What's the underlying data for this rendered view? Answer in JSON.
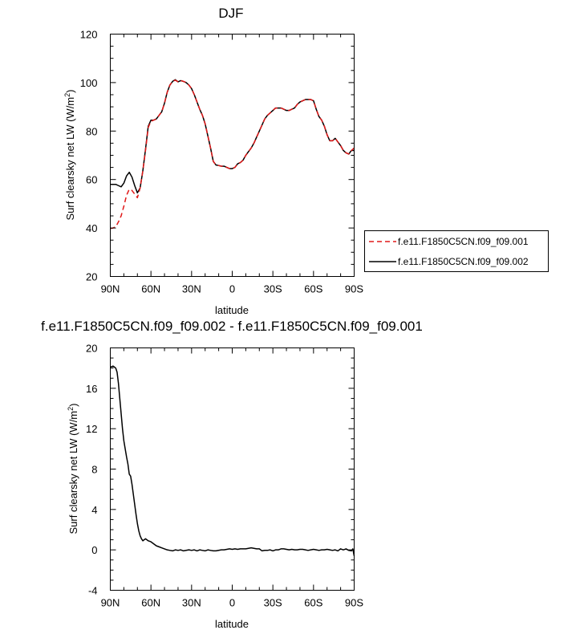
{
  "chart_data": [
    {
      "type": "line",
      "title": "DJF",
      "xlabel": "latitude",
      "ylabel": "Surf clearsky net LW (W/m",
      "ylabel_sup": "2",
      "ylabel_close": ")",
      "xlim": [
        90,
        -90
      ],
      "ylim": [
        20,
        120
      ],
      "xticks": [
        90,
        60,
        30,
        0,
        -30,
        -60,
        -90
      ],
      "xtick_labels": [
        "90N",
        "60N",
        "30N",
        "0",
        "30S",
        "60S",
        "90S"
      ],
      "yticks": [
        20,
        40,
        60,
        80,
        100,
        120
      ],
      "ytick_labels": [
        "20",
        "40",
        "60",
        "80",
        "100",
        "120"
      ],
      "legend_placement": "right",
      "series": [
        {
          "name": "f.e11.F1850C5CN.f09_f09.001",
          "color": "#e01818",
          "dash": "dashed",
          "x": [
            90,
            88,
            86,
            84,
            82,
            80,
            78,
            76,
            74,
            72,
            70,
            68,
            66,
            64,
            62,
            60,
            58,
            56,
            54,
            52,
            50,
            48,
            46,
            44,
            42,
            40,
            38,
            36,
            34,
            32,
            30,
            28,
            26,
            24,
            22,
            20,
            18,
            16,
            14,
            12,
            10,
            8,
            6,
            4,
            2,
            0,
            -2,
            -4,
            -6,
            -8,
            -10,
            -12,
            -14,
            -16,
            -18,
            -20,
            -22,
            -24,
            -26,
            -28,
            -30,
            -32,
            -34,
            -36,
            -38,
            -40,
            -42,
            -44,
            -46,
            -48,
            -50,
            -52,
            -54,
            -56,
            -58,
            -60,
            -62,
            -64,
            -66,
            -68,
            -70,
            -72,
            -74,
            -76,
            -78,
            -80,
            -82,
            -84,
            -86,
            -88,
            -90
          ],
          "y": [
            39.8,
            40.0,
            40.5,
            42.5,
            45.0,
            49.0,
            53.5,
            56.0,
            55.5,
            54.0,
            52.5,
            56.5,
            63.5,
            72.0,
            81.5,
            84.0,
            84.5,
            85.0,
            86.5,
            88.0,
            91.5,
            96.0,
            99.0,
            100.5,
            101.0,
            100.3,
            100.8,
            100.5,
            100.0,
            99.0,
            97.5,
            95.0,
            92.0,
            89.0,
            86.5,
            83.0,
            78.0,
            73.0,
            67.5,
            66.0,
            65.8,
            65.5,
            65.5,
            65.0,
            64.5,
            64.5,
            65.0,
            66.5,
            67.0,
            68.0,
            70.0,
            71.5,
            73.0,
            75.0,
            77.5,
            80.0,
            82.5,
            85.0,
            86.5,
            87.5,
            88.5,
            89.5,
            89.5,
            89.5,
            89.0,
            88.5,
            88.5,
            89.0,
            89.5,
            91.0,
            92.0,
            92.5,
            93.0,
            93.0,
            93.0,
            92.5,
            89.0,
            86.0,
            84.5,
            82.0,
            78.5,
            76.0,
            76.0,
            77.0,
            75.5,
            74.0,
            72.0,
            71.0,
            70.5,
            72.0,
            73.0
          ]
        },
        {
          "name": "f.e11.F1850C5CN.f09_f09.002",
          "color": "#000000",
          "dash": "solid",
          "x": [
            90,
            88,
            86,
            84,
            82,
            80,
            78,
            76,
            74,
            72,
            70,
            68,
            66,
            64,
            62,
            60,
            58,
            56,
            54,
            52,
            50,
            48,
            46,
            44,
            42,
            40,
            38,
            36,
            34,
            32,
            30,
            28,
            26,
            24,
            22,
            20,
            18,
            16,
            14,
            12,
            10,
            8,
            6,
            4,
            2,
            0,
            -2,
            -4,
            -6,
            -8,
            -10,
            -12,
            -14,
            -16,
            -18,
            -20,
            -22,
            -24,
            -26,
            -28,
            -30,
            -32,
            -34,
            -36,
            -38,
            -40,
            -42,
            -44,
            -46,
            -48,
            -50,
            -52,
            -54,
            -56,
            -58,
            -60,
            -62,
            -64,
            -66,
            -68,
            -70,
            -72,
            -74,
            -76,
            -78,
            -80,
            -82,
            -84,
            -86,
            -88,
            -90
          ],
          "y": [
            58.0,
            58.0,
            58.0,
            57.5,
            57.0,
            58.5,
            61.5,
            63.0,
            61.0,
            57.5,
            54.5,
            56.5,
            63.5,
            72.5,
            82.0,
            84.5,
            84.5,
            85.0,
            86.5,
            88.0,
            91.5,
            96.0,
            99.0,
            100.5,
            101.2,
            100.3,
            100.8,
            100.5,
            100.0,
            99.0,
            97.5,
            95.0,
            92.0,
            89.0,
            86.5,
            83.0,
            78.0,
            73.0,
            67.5,
            66.0,
            65.8,
            65.5,
            65.5,
            65.0,
            64.5,
            64.5,
            65.0,
            66.5,
            67.0,
            68.0,
            70.0,
            71.5,
            73.0,
            75.0,
            77.5,
            80.0,
            82.5,
            85.0,
            86.5,
            87.5,
            88.5,
            89.5,
            89.5,
            89.5,
            89.0,
            88.5,
            88.5,
            89.0,
            89.5,
            91.0,
            92.0,
            92.5,
            93.0,
            93.0,
            93.0,
            92.5,
            89.0,
            86.0,
            84.5,
            82.0,
            78.5,
            76.0,
            76.0,
            77.0,
            75.5,
            74.0,
            72.0,
            71.0,
            70.5,
            72.0,
            72.0
          ]
        }
      ]
    },
    {
      "type": "line",
      "title": "f.e11.F1850C5CN.f09_f09.002 - f.e11.F1850C5CN.f09_f09.001",
      "xlabel": "latitude",
      "ylabel": "Surf clearsky net LW (W/m",
      "ylabel_sup": "2",
      "ylabel_close": ")",
      "xlim": [
        90,
        -90
      ],
      "ylim": [
        -4,
        20
      ],
      "xticks": [
        90,
        60,
        30,
        0,
        -30,
        -60,
        -90
      ],
      "xtick_labels": [
        "90N",
        "60N",
        "30N",
        "0",
        "30S",
        "60S",
        "90S"
      ],
      "yticks": [
        -4,
        0,
        4,
        8,
        12,
        16,
        20
      ],
      "ytick_labels": [
        "-4",
        "0",
        "4",
        "8",
        "12",
        "16",
        "20"
      ],
      "series": [
        {
          "color": "#000000",
          "dash": "solid",
          "x": [
            90,
            88,
            87,
            86,
            85,
            84,
            83,
            82,
            81,
            80,
            79,
            78,
            77,
            76,
            75,
            74,
            73,
            72,
            71,
            70,
            69,
            68,
            67,
            66,
            64,
            62,
            60,
            58,
            56,
            54,
            52,
            50,
            48,
            46,
            44,
            42,
            40,
            38,
            36,
            34,
            32,
            30,
            28,
            26,
            24,
            22,
            20,
            18,
            16,
            14,
            12,
            10,
            8,
            6,
            4,
            2,
            0,
            -2,
            -4,
            -6,
            -8,
            -10,
            -12,
            -14,
            -16,
            -18,
            -20,
            -22,
            -24,
            -26,
            -28,
            -30,
            -32,
            -34,
            -36,
            -38,
            -40,
            -42,
            -44,
            -46,
            -48,
            -50,
            -52,
            -54,
            -56,
            -58,
            -60,
            -62,
            -64,
            -66,
            -68,
            -70,
            -72,
            -74,
            -76,
            -78,
            -80,
            -82,
            -84,
            -86,
            -88,
            -89,
            -90
          ],
          "y": [
            18.1,
            18.2,
            18.1,
            18.0,
            17.6,
            16.5,
            15.0,
            13.5,
            12.0,
            10.8,
            10.0,
            9.2,
            8.5,
            7.5,
            7.3,
            6.5,
            5.5,
            4.5,
            3.5,
            2.6,
            1.9,
            1.4,
            1.1,
            0.9,
            1.1,
            0.9,
            0.8,
            0.6,
            0.4,
            0.3,
            0.2,
            0.1,
            0.0,
            -0.05,
            -0.1,
            0.0,
            -0.05,
            0.0,
            -0.1,
            -0.05,
            0.0,
            -0.05,
            0.0,
            -0.1,
            0.0,
            -0.05,
            -0.1,
            0.0,
            -0.05,
            -0.1,
            -0.1,
            -0.05,
            0.0,
            0.0,
            0.05,
            0.1,
            0.05,
            0.1,
            0.05,
            0.1,
            0.1,
            0.1,
            0.15,
            0.2,
            0.15,
            0.1,
            0.1,
            -0.1,
            -0.05,
            -0.05,
            0.0,
            -0.1,
            0.0,
            0.0,
            0.1,
            0.1,
            0.05,
            0.0,
            0.05,
            0.0,
            0.0,
            0.05,
            0.05,
            0.0,
            -0.05,
            0.0,
            0.05,
            0.0,
            -0.05,
            0.0,
            0.0,
            0.05,
            0.0,
            -0.05,
            0.0,
            -0.1,
            0.1,
            0.0,
            0.1,
            -0.05,
            -0.1,
            0.1,
            -0.6
          ]
        }
      ]
    }
  ]
}
